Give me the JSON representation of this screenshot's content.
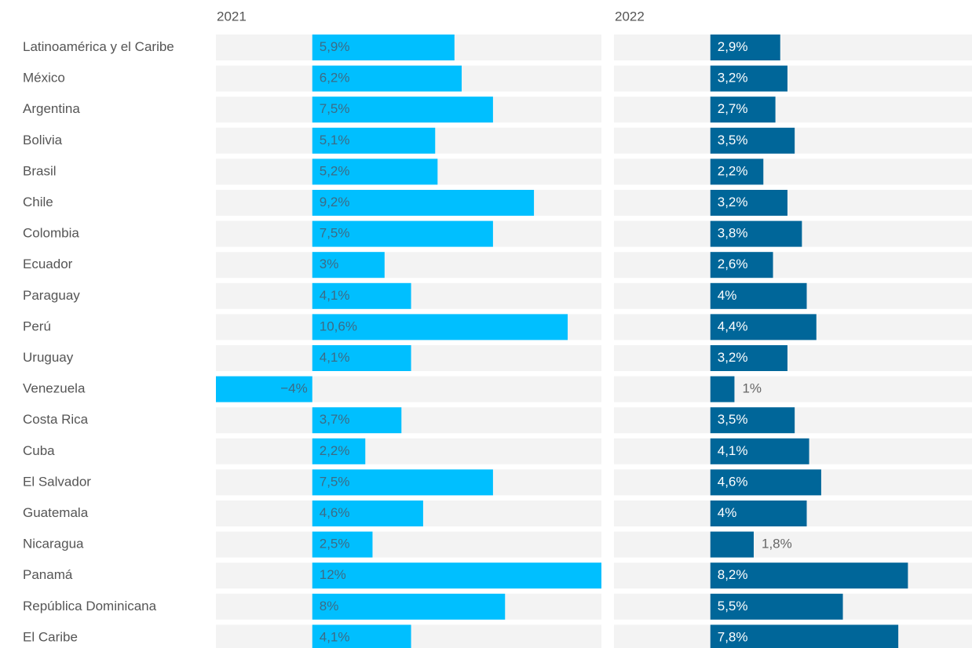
{
  "chart_data": {
    "type": "bar",
    "orientation": "horizontal",
    "categories": [
      "Latinoamérica y el Caribe",
      "México",
      "Argentina",
      "Bolivia",
      "Brasil",
      "Chile",
      "Colombia",
      "Ecuador",
      "Paraguay",
      "Perú",
      "Uruguay",
      "Venezuela",
      "Costa Rica",
      "Cuba",
      "El Salvador",
      "Guatemala",
      "Nicaragua",
      "Panamá",
      "República Dominicana",
      "El Caribe"
    ],
    "xlim": [
      -4,
      12
    ],
    "series": [
      {
        "name": "2021",
        "color": "#00bfff",
        "values": [
          5.9,
          6.2,
          7.5,
          5.1,
          5.2,
          9.2,
          7.5,
          3,
          4.1,
          10.6,
          4.1,
          -4,
          3.7,
          2.2,
          7.5,
          4.6,
          2.5,
          12,
          8,
          4.1
        ],
        "value_labels": [
          "5,9%",
          "6,2%",
          "7,5%",
          "5,1%",
          "5,2%",
          "9,2%",
          "7,5%",
          "3%",
          "4,1%",
          "10,6%",
          "4,1%",
          "−4%",
          "3,7%",
          "2,2%",
          "7,5%",
          "4,6%",
          "2,5%",
          "12%",
          "8%",
          "4,1%"
        ]
      },
      {
        "name": "2022",
        "color": "#006699",
        "values": [
          2.9,
          3.2,
          2.7,
          3.5,
          2.2,
          3.2,
          3.8,
          2.6,
          4,
          4.4,
          3.2,
          1,
          3.5,
          4.1,
          4.6,
          4,
          1.8,
          8.2,
          5.5,
          7.8
        ],
        "value_labels": [
          "2,9%",
          "3,2%",
          "2,7%",
          "3,5%",
          "2,2%",
          "3,2%",
          "3,8%",
          "2,6%",
          "4%",
          "4,4%",
          "3,2%",
          "1%",
          "3,5%",
          "4,1%",
          "4,6%",
          "4%",
          "1,8%",
          "8,2%",
          "5,5%",
          "7,8%"
        ]
      }
    ]
  }
}
